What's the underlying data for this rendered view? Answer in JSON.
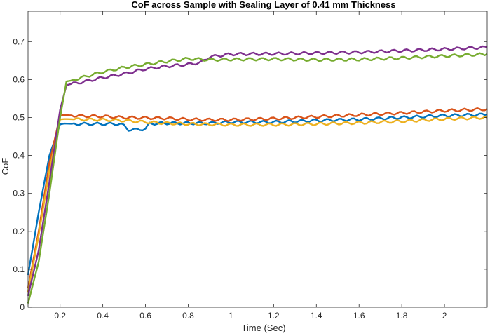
{
  "chart_data": {
    "type": "line",
    "title": "CoF across Sample with Sealing Layer of 0.41 mm Thickness",
    "xlabel": "Time (Sec)",
    "ylabel": "CoF",
    "xlim": [
      0.05,
      2.2
    ],
    "ylim": [
      0,
      0.78
    ],
    "xticks": [
      0.2,
      0.4,
      0.6,
      0.8,
      1,
      1.2,
      1.4,
      1.6,
      1.8,
      2
    ],
    "xtick_labels": [
      "0.2",
      "0.4",
      "0.6",
      "0.8",
      "1",
      "1.2",
      "1.4",
      "1.6",
      "1.8",
      "2"
    ],
    "yticks": [
      0,
      0.1,
      0.2,
      0.3,
      0.4,
      0.5,
      0.6,
      0.7
    ],
    "ytick_labels": [
      "0",
      "0.1",
      "0.2",
      "0.3",
      "0.4",
      "0.5",
      "0.6",
      "0.7"
    ],
    "grid": false,
    "box": true,
    "series": [
      {
        "color": "#0072BD",
        "x": [
          0.05,
          0.1,
          0.15,
          0.2,
          0.22,
          0.3,
          0.4,
          0.48,
          0.5,
          0.52,
          0.56,
          0.6,
          0.62,
          0.7,
          0.8,
          0.9,
          1.0,
          1.2,
          1.4,
          1.6,
          1.8,
          2.0,
          2.2
        ],
        "y": [
          0.085,
          0.25,
          0.4,
          0.482,
          0.484,
          0.483,
          0.483,
          0.483,
          0.478,
          0.468,
          0.468,
          0.47,
          0.484,
          0.485,
          0.485,
          0.485,
          0.488,
          0.488,
          0.492,
          0.495,
          0.5,
          0.505,
          0.508
        ]
      },
      {
        "color": "#D95319",
        "x": [
          0.05,
          0.1,
          0.15,
          0.2,
          0.22,
          0.3,
          0.4,
          0.5,
          0.6,
          0.7,
          0.8,
          0.9,
          1.0,
          1.2,
          1.4,
          1.6,
          1.8,
          2.0,
          2.2
        ],
        "y": [
          0.05,
          0.2,
          0.38,
          0.505,
          0.507,
          0.504,
          0.503,
          0.5,
          0.499,
          0.498,
          0.495,
          0.494,
          0.494,
          0.497,
          0.502,
          0.507,
          0.512,
          0.518,
          0.522
        ]
      },
      {
        "color": "#EDB120",
        "x": [
          0.05,
          0.1,
          0.15,
          0.2,
          0.22,
          0.3,
          0.4,
          0.5,
          0.6,
          0.7,
          0.8,
          0.9,
          1.0,
          1.2,
          1.4,
          1.6,
          1.8,
          2.0,
          2.2
        ],
        "y": [
          0.04,
          0.19,
          0.36,
          0.495,
          0.496,
          0.495,
          0.494,
          0.492,
          0.488,
          0.485,
          0.483,
          0.482,
          0.481,
          0.481,
          0.483,
          0.486,
          0.49,
          0.496,
          0.5
        ]
      },
      {
        "color": "#7E2F8E",
        "x": [
          0.05,
          0.1,
          0.15,
          0.2,
          0.23,
          0.25,
          0.3,
          0.4,
          0.5,
          0.6,
          0.7,
          0.8,
          0.86,
          0.9,
          1.0,
          1.2,
          1.4,
          1.6,
          1.8,
          2.0,
          2.2
        ],
        "y": [
          0.03,
          0.15,
          0.33,
          0.52,
          0.585,
          0.588,
          0.593,
          0.605,
          0.615,
          0.628,
          0.635,
          0.64,
          0.645,
          0.66,
          0.667,
          0.668,
          0.67,
          0.672,
          0.676,
          0.68,
          0.685
        ]
      },
      {
        "color": "#77AC30",
        "x": [
          0.05,
          0.1,
          0.15,
          0.2,
          0.23,
          0.25,
          0.3,
          0.4,
          0.5,
          0.6,
          0.7,
          0.8,
          0.9,
          1.0,
          1.2,
          1.4,
          1.6,
          1.8,
          2.0,
          2.2
        ],
        "y": [
          0.01,
          0.12,
          0.3,
          0.5,
          0.595,
          0.597,
          0.605,
          0.62,
          0.632,
          0.64,
          0.648,
          0.655,
          0.652,
          0.653,
          0.654,
          0.652,
          0.653,
          0.657,
          0.662,
          0.667
        ]
      }
    ]
  }
}
